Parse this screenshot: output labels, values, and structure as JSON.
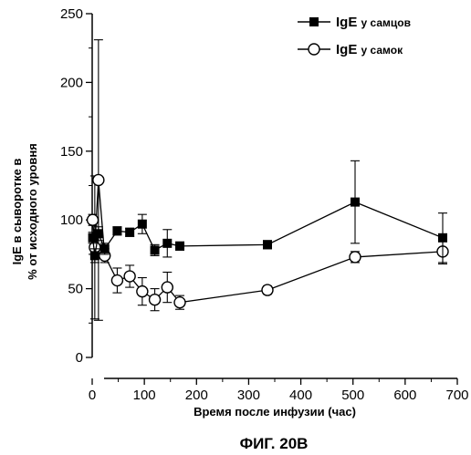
{
  "chart_data": {
    "type": "line",
    "xlabel": "Время после инфузии (час)",
    "ylabel_lines": [
      "IgE в сыворотке в",
      "% от исходного уровня"
    ],
    "caption": "ФИГ. 20В",
    "xlim": [
      0,
      700
    ],
    "ylim": [
      0,
      250
    ],
    "xticks": [
      0,
      100,
      200,
      300,
      400,
      500,
      600,
      700
    ],
    "yticks": [
      0,
      50,
      100,
      150,
      200,
      250
    ],
    "legend_position": "top-right",
    "series": [
      {
        "name": "IgE у самцов",
        "name_main": "IgE",
        "name_suffix": "у самцов",
        "marker": "filled-square",
        "color": "#000000",
        "x": [
          1,
          5,
          12,
          24,
          48,
          72,
          96,
          120,
          144,
          168,
          336,
          504,
          672
        ],
        "y": [
          87,
          74,
          90,
          79,
          92,
          91,
          97,
          78,
          83,
          81,
          82,
          113,
          87
        ],
        "err": [
          4,
          5,
          5,
          4,
          3,
          3,
          7,
          4,
          10,
          3,
          3,
          30,
          18
        ]
      },
      {
        "name": "IgE у самок",
        "name_main": "IgE",
        "name_suffix": "у самок",
        "marker": "open-circle",
        "color": "#000000",
        "x": [
          1,
          5,
          12,
          24,
          48,
          72,
          96,
          120,
          144,
          168,
          336,
          504,
          672
        ],
        "y": [
          100,
          80,
          129,
          74,
          56,
          59,
          48,
          42,
          51,
          40,
          49,
          73,
          77
        ],
        "err": [
          4,
          52,
          102,
          5,
          9,
          8,
          10,
          8,
          11,
          5,
          3,
          4,
          9
        ]
      }
    ]
  }
}
